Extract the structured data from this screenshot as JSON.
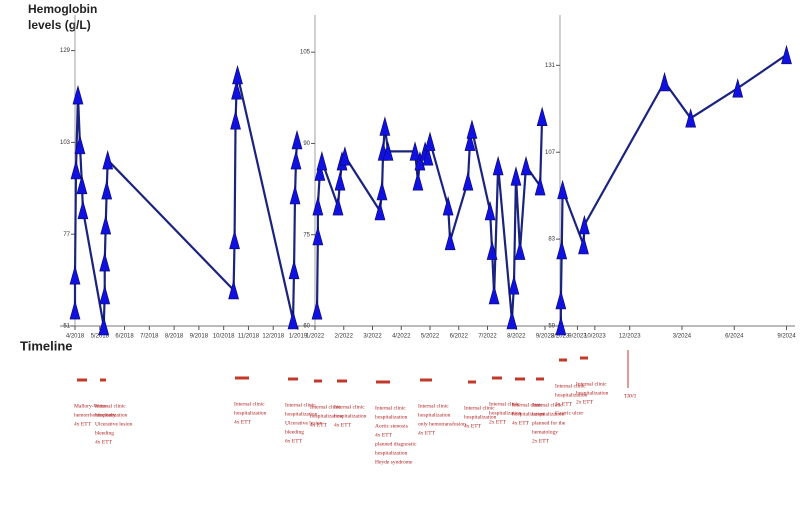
{
  "y_label": [
    "Hemoglobin",
    "levels (g/L)"
  ],
  "timeline_label": "Timeline",
  "chart_data": [
    {
      "type": "line",
      "color": "#1a237e",
      "marker_color": "#1010e0",
      "xlim": [
        0,
        9
      ],
      "ylim": [
        51,
        132
      ],
      "xticks": [
        {
          "value": 0,
          "label": "4/2018"
        },
        {
          "value": 1,
          "label": "5/2018"
        },
        {
          "value": 2,
          "label": "6/2018"
        },
        {
          "value": 3,
          "label": "7/2018"
        },
        {
          "value": 4,
          "label": "8/2018"
        },
        {
          "value": 5,
          "label": "9/2018"
        },
        {
          "value": 6,
          "label": "10/2018"
        },
        {
          "value": 7,
          "label": "11/2018"
        },
        {
          "value": 8,
          "label": "12/2018"
        },
        {
          "value": 9,
          "label": "1/2019"
        }
      ],
      "yticks": [
        51,
        77,
        103,
        129
      ],
      "x": [
        0,
        0,
        0.04,
        0.12,
        0.2,
        0.28,
        0.32,
        1.16,
        1.2,
        1.2,
        1.24,
        1.28,
        1.32,
        6.4,
        6.44,
        6.48,
        6.52,
        6.56,
        8.8,
        8.84,
        8.88,
        8.92,
        8.96
      ],
      "values": [
        55.5,
        65.4,
        95.2,
        116.4,
        102.3,
        91,
        83.9,
        51,
        59.8,
        69.1,
        79.6,
        89.5,
        98,
        61.2,
        75.4,
        109.3,
        117.8,
        122.1,
        52.7,
        66.9,
        88.1,
        98,
        103.7
      ]
    },
    {
      "type": "line",
      "color": "#1a237e",
      "marker_color": "#1010e0",
      "xlim": [
        0,
        8
      ],
      "ylim": [
        60,
        107
      ],
      "xticks": [
        {
          "value": 0,
          "label": "1/2022"
        },
        {
          "value": 1,
          "label": "2/2022"
        },
        {
          "value": 2,
          "label": "3/2022"
        },
        {
          "value": 3,
          "label": "4/2022"
        },
        {
          "value": 4,
          "label": "5/2022"
        },
        {
          "value": 5,
          "label": "6/2022"
        },
        {
          "value": 6,
          "label": "7/2022"
        },
        {
          "value": 7,
          "label": "8/2022"
        },
        {
          "value": 8,
          "label": "9/2022"
        }
      ],
      "yticks": [
        60,
        75,
        90,
        105
      ],
      "x": [
        0.07,
        0.1,
        0.1,
        0.17,
        0.24,
        0.8,
        0.87,
        0.94,
        1.04,
        2.26,
        2.33,
        2.37,
        2.43,
        2.54,
        3.48,
        3.58,
        3.65,
        3.83,
        3.93,
        4.0,
        4.63,
        4.7,
        5.32,
        5.39,
        5.46,
        6.09,
        6.16,
        6.23,
        6.37,
        6.85,
        6.92,
        6.99,
        7.13,
        7.34,
        7.83,
        7.9
      ],
      "values": [
        62.6,
        74.8,
        79.7,
        85.4,
        87.1,
        79.7,
        83.8,
        87.1,
        87.9,
        78.9,
        82.2,
        88.7,
        92.8,
        88.7,
        88.7,
        83.8,
        87.1,
        88.7,
        87.9,
        90.3,
        79.7,
        74.0,
        83.8,
        90.3,
        92.3,
        78.9,
        72.4,
        65.1,
        86.3,
        61.0,
        66.7,
        84.6,
        72.4,
        86.3,
        83.0,
        94.4
      ]
    },
    {
      "type": "line",
      "color": "#1a237e",
      "marker_color": "#1010e0",
      "xlim": [
        0,
        13.2
      ],
      "ylim": [
        59,
        138
      ],
      "xticks": [
        {
          "value": 0,
          "label": "8/2023"
        },
        {
          "value": 1,
          "label": "9/2023"
        },
        {
          "value": 2,
          "label": "10/2023"
        },
        {
          "value": 4,
          "label": "12/2023"
        },
        {
          "value": 7,
          "label": "3/2024"
        },
        {
          "value": 10,
          "label": "6/2024"
        },
        {
          "value": 13,
          "label": "9/2024"
        }
      ],
      "yticks": [
        59,
        83,
        107,
        131
      ],
      "x": [
        0.05,
        0.05,
        0.1,
        0.15,
        1.35,
        1.4,
        6.0,
        7.5,
        10.2,
        13.0
      ],
      "values": [
        59,
        66.2,
        80,
        96.6,
        81.4,
        86.9,
        126.4,
        116.4,
        124.7,
        133.9
      ]
    }
  ],
  "timeline_events": [
    {
      "text": [
        "Mallory-Weiss",
        "hemorrhoidectomy",
        "4x ETT"
      ]
    },
    {
      "text": [
        "Internal clinic",
        "hospitalization",
        "Ulcerative lesion",
        "bleeding",
        "4x ETT"
      ]
    },
    {
      "text": [
        "Internal clinic",
        "hospitalization",
        "4x ETT"
      ]
    },
    {
      "text": [
        "Internal clinic",
        "hospitalization",
        "Ulcerative lesion",
        "bleeding",
        "6x ETT"
      ]
    },
    {
      "text": [
        "Internal clinic",
        "hospitalization",
        "4x ETT"
      ]
    },
    {
      "text": [
        "Internal clinic",
        "hospitalization",
        "4x ETT"
      ]
    },
    {
      "text": [
        "Internal clinic",
        "hospitalization",
        "Aortic stenosis",
        "4x ETT",
        "planned diagnostic",
        "hospitalization",
        "Heyde syndrome"
      ]
    },
    {
      "text": [
        "Internal clinic",
        "hospitalization",
        "only hemotransfusion",
        "4x ETT"
      ]
    },
    {
      "text": [
        "Internal clinic",
        "hospitalization",
        "4x ETT"
      ]
    },
    {
      "text": [
        "Internal clinic",
        "hospitalization",
        "2x ETT"
      ]
    },
    {
      "text": [
        "Internal clinic",
        "hospitalization",
        "4x ETT"
      ]
    },
    {
      "text": [
        "Internal clinic",
        "hospitalization",
        "planned for the",
        "hematology",
        "2x ETT"
      ]
    },
    {
      "text": [
        "Internal clinic",
        "hospitalization",
        "3x ETT",
        "Gastric ulcer"
      ]
    },
    {
      "text": [
        "Internal clinic",
        "hospitalization",
        "2x ETT"
      ]
    },
    {
      "text": [
        "TAVI"
      ]
    }
  ]
}
